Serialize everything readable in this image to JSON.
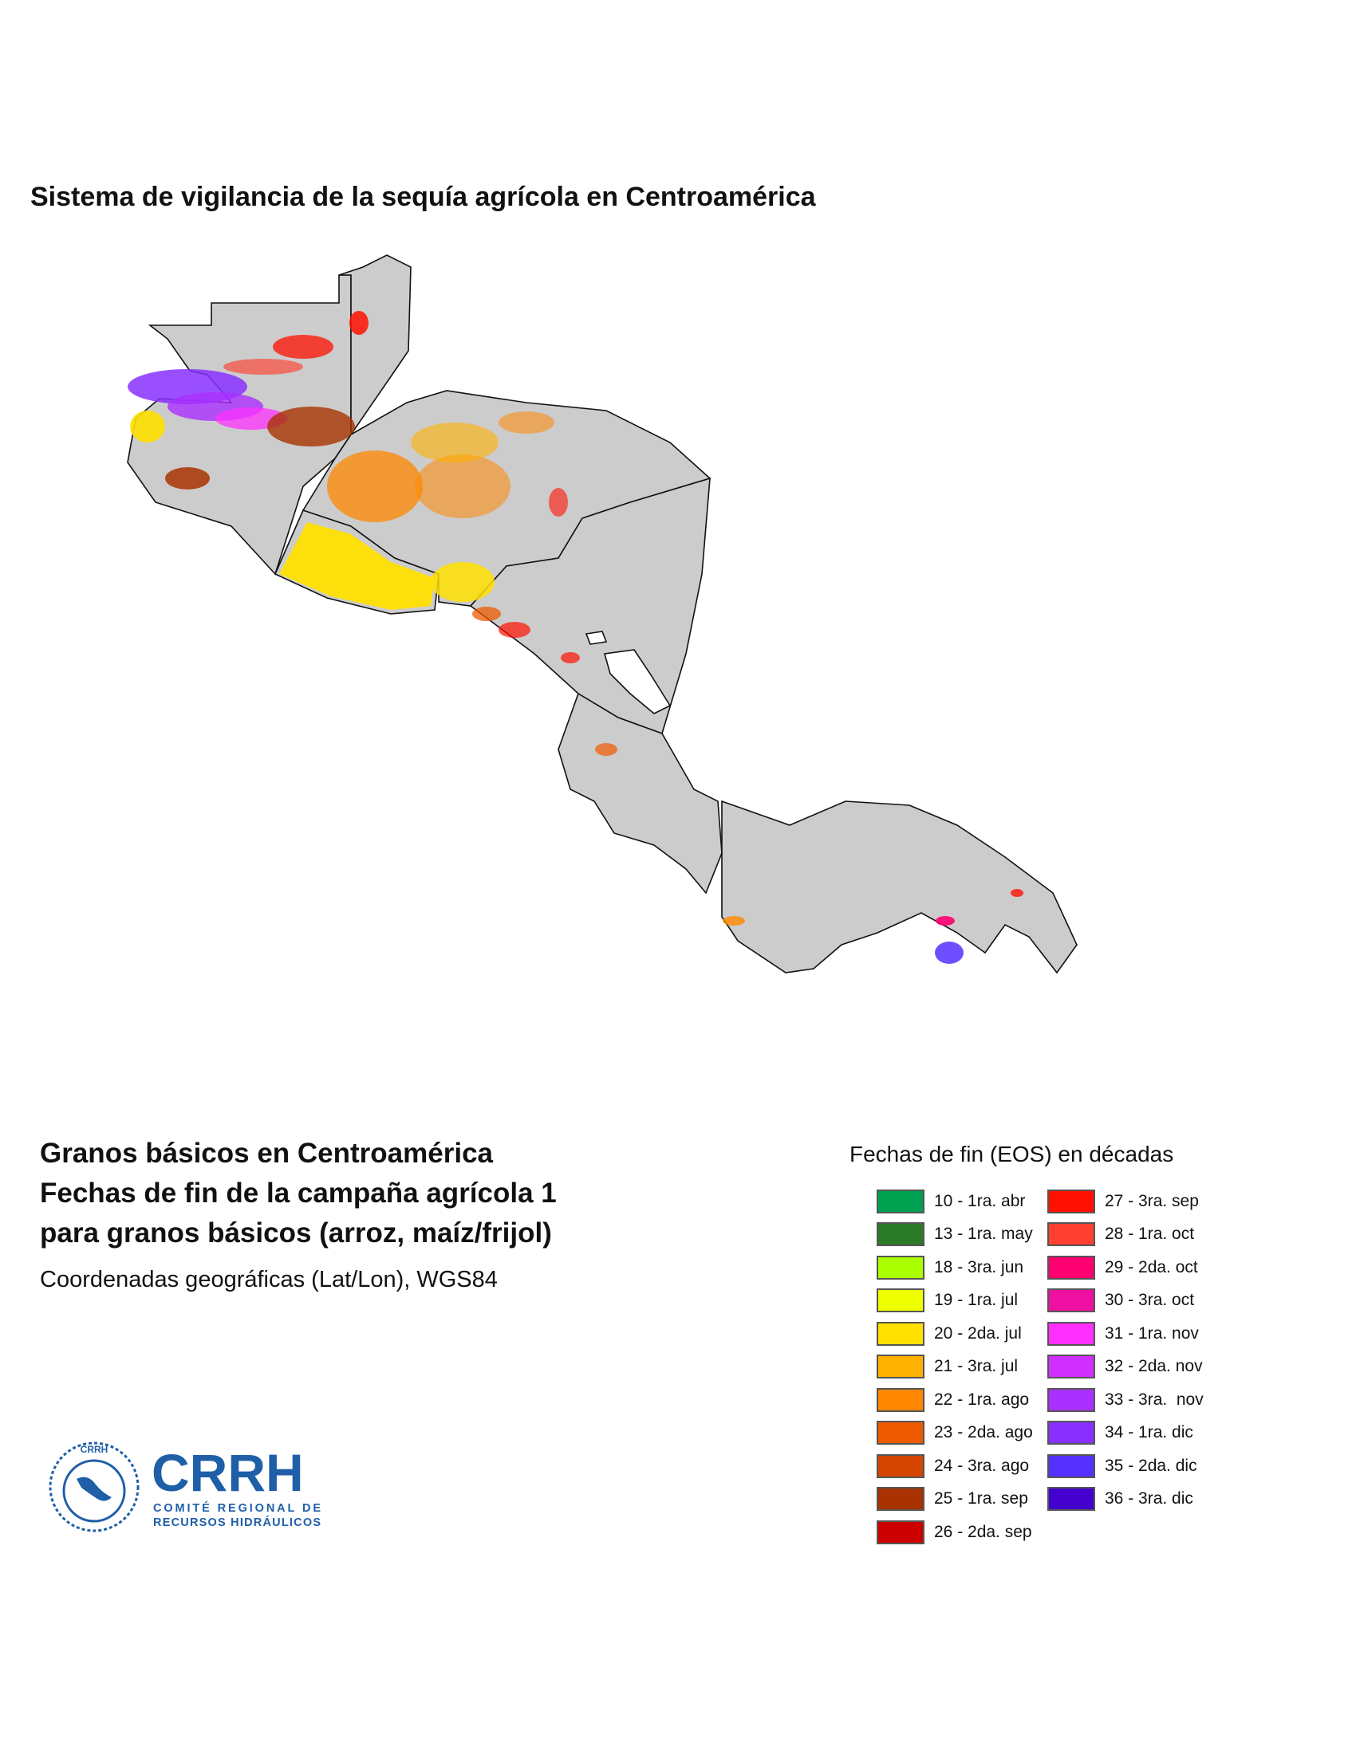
{
  "map": {
    "title": "Sistema de vigilancia de la sequía agrícola en Centroamérica",
    "land_color": "#cccccc",
    "border_color": "#111111"
  },
  "info": {
    "heading_lines": [
      "Granos básicos en Centroamérica",
      "Fechas de fin de la campaña agrícola 1",
      "para granos básicos (arroz, maíz/frijol)"
    ],
    "coordinates": "Coordenadas geográficas (Lat/Lon), WGS84"
  },
  "logo": {
    "acronym": "CRRH",
    "line1": "COMITÉ REGIONAL DE",
    "line2": "RECURSOS HIDRÁULICOS",
    "small": "CRRH",
    "color": "#1f5fa8"
  },
  "legend": {
    "title": "Fechas de fin (EOS) en décadas",
    "left": [
      {
        "label": "10 - 1ra. abr",
        "color": "#00a050"
      },
      {
        "label": "13 - 1ra. may",
        "color": "#2a7a28"
      },
      {
        "label": "18 - 3ra. jun",
        "color": "#aaff00"
      },
      {
        "label": "19 - 1ra. jul",
        "color": "#eeff00"
      },
      {
        "label": "20 - 2da. jul",
        "color": "#ffe000"
      },
      {
        "label": "21 - 3ra. jul",
        "color": "#ffb000"
      },
      {
        "label": "22 - 1ra. ago",
        "color": "#ff8800"
      },
      {
        "label": "23 - 2da. ago",
        "color": "#ee5a00"
      },
      {
        "label": "24 - 3ra. ago",
        "color": "#d44500"
      },
      {
        "label": "25 - 1ra. sep",
        "color": "#a83200"
      },
      {
        "label": "26 - 2da. sep",
        "color": "#cc0000"
      }
    ],
    "right": [
      {
        "label": "27 - 3ra. sep",
        "color": "#ff1000"
      },
      {
        "label": "28 - 1ra. oct",
        "color": "#ff4030"
      },
      {
        "label": "29 - 2da. oct",
        "color": "#ff0070"
      },
      {
        "label": "30 - 3ra. oct",
        "color": "#ee10a0"
      },
      {
        "label": "31 - 1ra. nov",
        "color": "#ff30ff"
      },
      {
        "label": "32 - 2da. nov",
        "color": "#d030ff"
      },
      {
        "label": "33 - 3ra.  nov",
        "color": "#aa30ff"
      },
      {
        "label": "34 - 1ra. dic",
        "color": "#8830ff"
      },
      {
        "label": "35 - 2da. dic",
        "color": "#5530ff"
      },
      {
        "label": "36 - 3ra. dic",
        "color": "#4400cc"
      }
    ]
  }
}
